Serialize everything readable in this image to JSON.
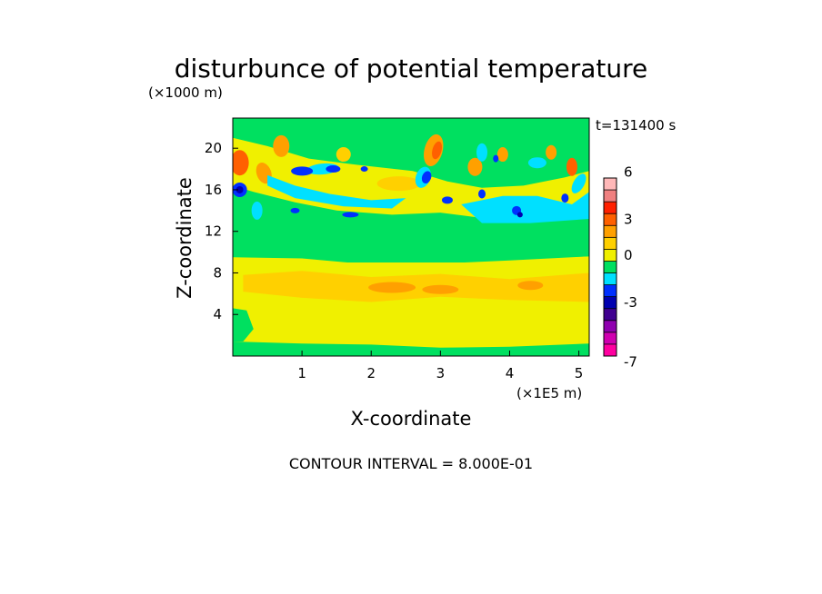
{
  "chart_data": {
    "type": "heatmap",
    "title": "disturbunce of potential temperature",
    "z_unit_label": "(×1000 m)",
    "x_unit_label": "(×1E5 m)",
    "xlabel": "X-coordinate",
    "ylabel": "Z-coordinate",
    "time_label": "t=131400 s",
    "footer": "CONTOUR INTERVAL = 8.000E-01",
    "xlim": [
      0,
      5.15
    ],
    "ylim": [
      0,
      22.9
    ],
    "x_ticks": [
      "1",
      "2",
      "3",
      "4",
      "5"
    ],
    "x_tick_values": [
      1,
      2,
      3,
      4,
      5
    ],
    "y_ticks": [
      "4",
      "8",
      "12",
      "16",
      "20"
    ],
    "y_tick_values": [
      4,
      8,
      12,
      16,
      20
    ],
    "contour_interval": 0.8,
    "colorbar": {
      "tick_labels": [
        "6",
        "3",
        "0",
        "-3",
        "-7"
      ],
      "tick_values": [
        6,
        3,
        0,
        -3,
        -7
      ],
      "colors": [
        "#ff00a0",
        "#d000b0",
        "#9000b0",
        "#400090",
        "#0000b0",
        "#0030ff",
        "#00e0ff",
        "#00e060",
        "#f0f000",
        "#ffd000",
        "#ffa000",
        "#ff6000",
        "#ff2000",
        "#f08080",
        "#ffb8b8"
      ]
    }
  }
}
